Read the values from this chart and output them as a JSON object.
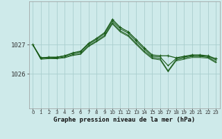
{
  "title": "Graphe pression niveau de la mer (hPa)",
  "background_color": "#ceeaea",
  "grid_color": "#aacece",
  "line_color": "#1a5c1a",
  "yticks": [
    1026,
    1027
  ],
  "ylim": [
    1024.8,
    1028.5
  ],
  "xlim": [
    -0.5,
    23.5
  ],
  "xticks": [
    0,
    1,
    2,
    3,
    4,
    5,
    6,
    7,
    8,
    9,
    10,
    11,
    12,
    13,
    14,
    15,
    16,
    17,
    18,
    19,
    20,
    21,
    22,
    23
  ],
  "series1": [
    1027.0,
    1026.55,
    1026.57,
    1026.57,
    1026.62,
    1026.72,
    1026.78,
    1027.05,
    1027.22,
    1027.42,
    1027.88,
    1027.6,
    1027.45,
    1027.18,
    1026.9,
    1026.65,
    1026.62,
    1026.62,
    1026.55,
    1026.6,
    1026.65,
    1026.65,
    1026.62,
    1026.52
  ],
  "series2": [
    1027.0,
    1026.55,
    1026.57,
    1026.57,
    1026.62,
    1026.7,
    1026.75,
    1027.02,
    1027.18,
    1027.38,
    1027.82,
    1027.55,
    1027.4,
    1027.12,
    1026.85,
    1026.6,
    1026.58,
    1026.28,
    1026.52,
    1026.58,
    1026.62,
    1026.62,
    1026.6,
    1026.48
  ],
  "series3": [
    1027.0,
    1026.52,
    1026.55,
    1026.54,
    1026.58,
    1026.66,
    1026.7,
    1026.97,
    1027.13,
    1027.32,
    1027.76,
    1027.48,
    1027.33,
    1027.05,
    1026.78,
    1026.56,
    1026.52,
    1026.1,
    1026.48,
    1026.54,
    1026.6,
    1026.6,
    1026.57,
    1026.42
  ],
  "series4": [
    1027.0,
    1026.5,
    1026.52,
    1026.52,
    1026.55,
    1026.63,
    1026.67,
    1026.94,
    1027.1,
    1027.28,
    1027.72,
    1027.44,
    1027.29,
    1027.01,
    1026.74,
    1026.52,
    1026.48,
    1026.07,
    1026.44,
    1026.5,
    1026.56,
    1026.56,
    1026.54,
    1026.38
  ]
}
